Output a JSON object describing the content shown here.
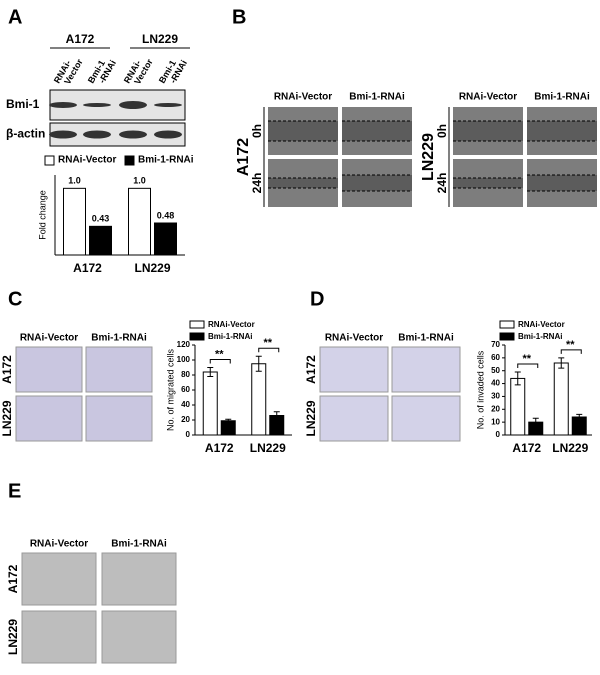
{
  "panel_labels": [
    "A",
    "B",
    "C",
    "D",
    "E"
  ],
  "blot": {
    "groups": [
      "A172",
      "LN229"
    ],
    "lanes": [
      [
        "RNAi-",
        "Vector"
      ],
      [
        "Bmi-1",
        "-RNAi"
      ],
      [
        "RNAi-",
        "Vector"
      ],
      [
        "Bmi-1",
        "-RNAi"
      ]
    ],
    "rows": [
      "Bmi-1",
      "β-actin"
    ]
  },
  "wound": {
    "columns": [
      "RNAi-Vector",
      "Bmi-1-RNAi"
    ],
    "cells": [
      "A172",
      "LN229"
    ],
    "times": [
      "0h",
      "24h"
    ]
  },
  "transwell_c": {
    "columns": [
      "RNAi-Vector",
      "Bmi-1-RNAi"
    ],
    "rows": [
      "A172",
      "LN229"
    ]
  },
  "transwell_d": {
    "columns": [
      "RNAi-Vector",
      "Bmi-1-RNAi"
    ],
    "rows": [
      "A172",
      "LN229"
    ]
  },
  "colony_e": {
    "columns": [
      "RNAi-Vector",
      "Bmi-1-RNAi"
    ],
    "rows": [
      "A172",
      "LN229"
    ]
  },
  "chart_data": [
    {
      "type": "bar",
      "y_label": "Fold change",
      "categories": [
        "A172",
        "LN229"
      ],
      "ylim": [
        0,
        1.2
      ],
      "series": [
        {
          "name": "RNAi-Vector",
          "color": "#ffffff",
          "values": [
            1.0,
            1.0
          ],
          "value_labels": [
            "1.0",
            "1.0"
          ]
        },
        {
          "name": "Bmi-1-RNAi",
          "color": "#000000",
          "values": [
            0.43,
            0.48
          ],
          "value_labels": [
            "0.43",
            "0.48"
          ]
        }
      ]
    },
    {
      "type": "bar",
      "y_label": "No. of migrated cells",
      "categories": [
        "A172",
        "LN229"
      ],
      "ylim": [
        0,
        120
      ],
      "yticks": [
        0,
        20,
        40,
        60,
        80,
        100,
        120
      ],
      "annotations": [
        "**",
        "**"
      ],
      "series": [
        {
          "name": "RNAi-Vector",
          "color": "#ffffff",
          "values": [
            84,
            95
          ],
          "errors": [
            6,
            10
          ]
        },
        {
          "name": "Bmi-1-RNAi",
          "color": "#000000",
          "values": [
            19,
            26
          ],
          "errors": [
            2,
            5
          ]
        }
      ]
    },
    {
      "type": "bar",
      "y_label": "No. of invaded cells",
      "categories": [
        "A172",
        "LN229"
      ],
      "ylim": [
        0,
        70
      ],
      "yticks": [
        0,
        10,
        20,
        30,
        40,
        50,
        60,
        70
      ],
      "annotations": [
        "**",
        "**"
      ],
      "series": [
        {
          "name": "RNAi-Vector",
          "color": "#ffffff",
          "values": [
            44,
            56
          ],
          "errors": [
            5,
            4
          ]
        },
        {
          "name": "Bmi-1-RNAi",
          "color": "#000000",
          "values": [
            10,
            14
          ],
          "errors": [
            3,
            2
          ]
        }
      ]
    }
  ]
}
